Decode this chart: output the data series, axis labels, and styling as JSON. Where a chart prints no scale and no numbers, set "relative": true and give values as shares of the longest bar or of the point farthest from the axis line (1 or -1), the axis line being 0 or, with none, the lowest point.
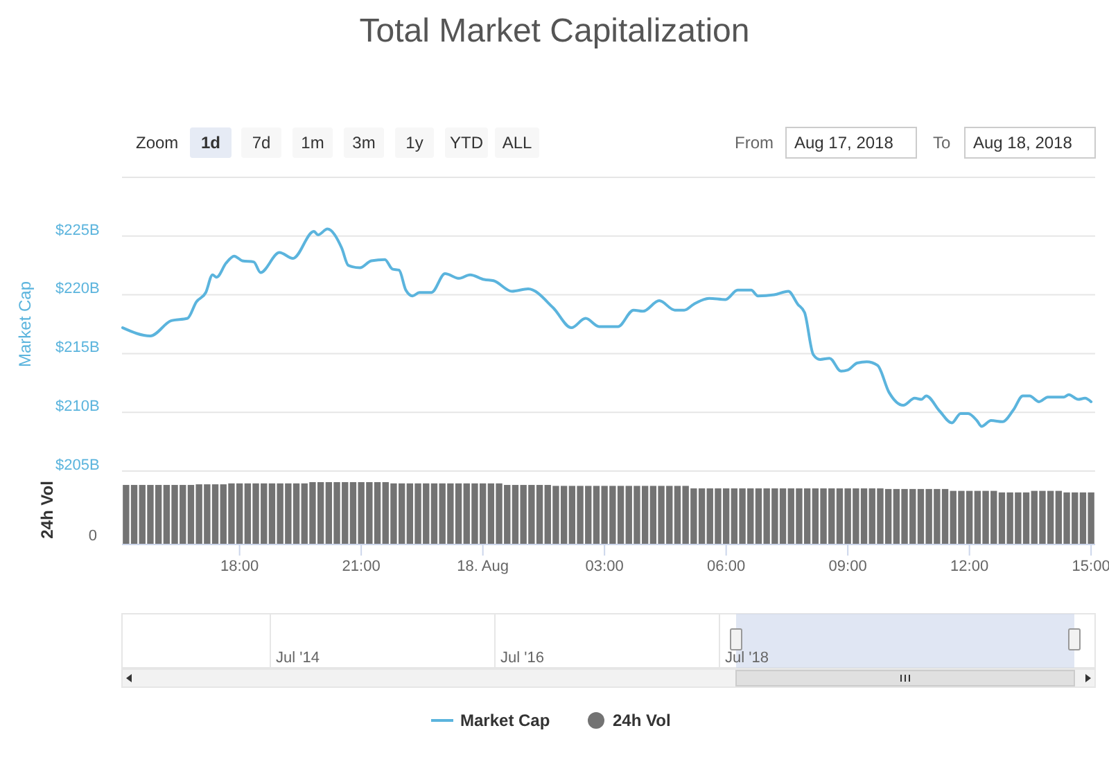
{
  "chart_data": [
    {
      "type": "line",
      "title": "Total Market Capitalization",
      "ylabel": "Market Cap",
      "xlim": [
        "2018-08-17T15:06",
        "2018-08-18T15:06"
      ],
      "ylim": [
        205,
        230
      ],
      "yticks": [
        {
          "value": 205,
          "label": "$205B"
        },
        {
          "value": 210,
          "label": "$210B"
        },
        {
          "value": 215,
          "label": "$215B"
        },
        {
          "value": 220,
          "label": "$220B"
        },
        {
          "value": 225,
          "label": "$225B"
        }
      ],
      "tick_labels": "y",
      "grid": "y",
      "legend": "bottom",
      "annotations": [
        "Zoom",
        "1d",
        "7d",
        "1m",
        "3m",
        "1y",
        "YTD",
        "ALL",
        "From",
        "Aug 17, 2018",
        "To",
        "Aug 18, 2018",
        "Jul '14",
        "Jul '16",
        "Jul '18"
      ],
      "x": [
        "2018-08-17T15:07",
        "2018-08-17T15:48",
        "2018-08-17T16:19",
        "2018-08-17T16:43",
        "2018-08-17T16:56",
        "2018-08-17T17:10",
        "2018-08-17T17:20",
        "2018-08-17T17:26",
        "2018-08-17T17:40",
        "2018-08-17T17:52",
        "2018-08-17T18:04",
        "2018-08-17T18:21",
        "2018-08-17T18:31",
        "2018-08-17T18:59",
        "2018-08-17T19:19",
        "2018-08-17T19:50",
        "2018-08-17T19:56",
        "2018-08-17T20:10",
        "2018-08-17T20:31",
        "2018-08-17T20:41",
        "2018-08-17T20:58",
        "2018-08-17T21:15",
        "2018-08-17T21:35",
        "2018-08-17T21:46",
        "2018-08-17T21:56",
        "2018-08-17T22:06",
        "2018-08-17T22:16",
        "2018-08-17T22:26",
        "2018-08-17T22:44",
        "2018-08-17T23:04",
        "2018-08-17T23:25",
        "2018-08-17T23:41",
        "2018-08-18T00:02",
        "2018-08-18T00:16",
        "2018-08-18T00:43",
        "2018-08-18T01:07",
        "2018-08-18T01:44",
        "2018-08-18T02:11",
        "2018-08-18T02:32",
        "2018-08-18T02:52",
        "2018-08-18T03:20",
        "2018-08-18T03:43",
        "2018-08-18T03:57",
        "2018-08-18T04:21",
        "2018-08-18T04:44",
        "2018-08-18T04:58",
        "2018-08-18T05:12",
        "2018-08-18T05:35",
        "2018-08-18T05:59",
        "2018-08-18T06:17",
        "2018-08-18T06:37",
        "2018-08-18T06:47",
        "2018-08-18T07:11",
        "2018-08-18T07:32",
        "2018-08-18T07:46",
        "2018-08-18T07:56",
        "2018-08-18T08:09",
        "2018-08-18T08:19",
        "2018-08-18T08:33",
        "2018-08-18T08:50",
        "2018-08-18T09:00",
        "2018-08-18T09:14",
        "2018-08-18T09:28",
        "2018-08-18T09:44",
        "2018-08-18T10:01",
        "2018-08-18T10:22",
        "2018-08-18T10:39",
        "2018-08-18T10:49",
        "2018-08-18T10:56",
        "2018-08-18T11:16",
        "2018-08-18T11:34",
        "2018-08-18T11:47",
        "2018-08-18T11:58",
        "2018-08-18T12:11",
        "2018-08-18T12:18",
        "2018-08-18T12:32",
        "2018-08-18T12:49",
        "2018-08-18T13:05",
        "2018-08-18T13:19",
        "2018-08-18T13:29",
        "2018-08-18T13:43",
        "2018-08-18T13:56",
        "2018-08-18T14:20",
        "2018-08-18T14:27",
        "2018-08-18T14:41",
        "2018-08-18T14:51",
        "2018-08-18T15:00"
      ],
      "series": [
        {
          "name": "Market Cap",
          "color": "#5bb4dd",
          "values": [
            217.2,
            216.5,
            217.8,
            218.0,
            219.4,
            220.2,
            221.7,
            221.5,
            222.7,
            223.3,
            222.9,
            222.8,
            221.9,
            223.6,
            223.1,
            225.4,
            225.1,
            225.6,
            224.0,
            222.5,
            222.3,
            222.9,
            223.0,
            222.2,
            222.1,
            220.4,
            219.9,
            220.2,
            220.2,
            221.8,
            221.4,
            221.7,
            221.3,
            221.2,
            220.3,
            220.5,
            218.9,
            217.2,
            218.0,
            217.3,
            217.3,
            218.7,
            218.6,
            219.5,
            218.7,
            218.7,
            219.2,
            219.7,
            219.6,
            220.4,
            220.4,
            219.9,
            220.0,
            220.3,
            219.2,
            218.5,
            214.9,
            214.5,
            214.6,
            213.5,
            213.6,
            214.2,
            214.3,
            214.0,
            211.7,
            210.6,
            211.2,
            211.1,
            211.4,
            210.1,
            209.1,
            209.9,
            209.9,
            209.3,
            208.8,
            209.3,
            209.2,
            210.2,
            211.4,
            211.4,
            210.9,
            211.3,
            211.3,
            211.5,
            211.1,
            211.2,
            210.9
          ]
        }
      ]
    },
    {
      "type": "bar",
      "ylabel": "24h Vol",
      "relative": true,
      "legend": "bottom",
      "tick_labels": "x",
      "annotations": [
        "0"
      ],
      "xlim": [
        "2018-08-17T15:06",
        "2018-08-18T15:06"
      ],
      "xticks": [
        {
          "value": "2018-08-17T18:00",
          "label": "18:00"
        },
        {
          "value": "2018-08-17T21:00",
          "label": "21:00"
        },
        {
          "value": "2018-08-18",
          "label": "18. Aug"
        },
        {
          "value": "2018-08-18T03:00",
          "label": "03:00"
        },
        {
          "value": "2018-08-18T06:00",
          "label": "06:00"
        },
        {
          "value": "2018-08-18T09:00",
          "label": "09:00"
        },
        {
          "value": "2018-08-18T12:00",
          "label": "12:00"
        },
        {
          "value": "2018-08-18T15:00",
          "label": "15:00"
        }
      ],
      "x": [
        "2018-08-17T15:12",
        "2018-08-17T15:24",
        "2018-08-17T15:36",
        "2018-08-17T15:48",
        "2018-08-17T16:00",
        "2018-08-17T16:12",
        "2018-08-17T16:24",
        "2018-08-17T16:36",
        "2018-08-17T16:48",
        "2018-08-17T17:00",
        "2018-08-17T17:12",
        "2018-08-17T17:24",
        "2018-08-17T17:36",
        "2018-08-17T17:48",
        "2018-08-17T18:00",
        "2018-08-17T18:12",
        "2018-08-17T18:24",
        "2018-08-17T18:36",
        "2018-08-17T18:48",
        "2018-08-17T19:00",
        "2018-08-17T19:12",
        "2018-08-17T19:24",
        "2018-08-17T19:36",
        "2018-08-17T19:48",
        "2018-08-17T20:00",
        "2018-08-17T20:12",
        "2018-08-17T20:24",
        "2018-08-17T20:36",
        "2018-08-17T20:48",
        "2018-08-17T21:00",
        "2018-08-17T21:12",
        "2018-08-17T21:24",
        "2018-08-17T21:36",
        "2018-08-17T21:48",
        "2018-08-17T22:00",
        "2018-08-17T22:12",
        "2018-08-17T22:24",
        "2018-08-17T22:36",
        "2018-08-17T22:48",
        "2018-08-17T23:00",
        "2018-08-17T23:12",
        "2018-08-17T23:24",
        "2018-08-17T23:36",
        "2018-08-17T23:48",
        "2018-08-18T00:00",
        "2018-08-18T00:12",
        "2018-08-18T00:24",
        "2018-08-18T00:36",
        "2018-08-18T00:48",
        "2018-08-18T01:00",
        "2018-08-18T01:12",
        "2018-08-18T01:24",
        "2018-08-18T01:36",
        "2018-08-18T01:48",
        "2018-08-18T02:00",
        "2018-08-18T02:12",
        "2018-08-18T02:24",
        "2018-08-18T02:36",
        "2018-08-18T02:48",
        "2018-08-18T03:00",
        "2018-08-18T03:12",
        "2018-08-18T03:24",
        "2018-08-18T03:36",
        "2018-08-18T03:48",
        "2018-08-18T04:00",
        "2018-08-18T04:12",
        "2018-08-18T04:24",
        "2018-08-18T04:36",
        "2018-08-18T04:48",
        "2018-08-18T05:00",
        "2018-08-18T05:12",
        "2018-08-18T05:24",
        "2018-08-18T05:36",
        "2018-08-18T05:48",
        "2018-08-18T06:00",
        "2018-08-18T06:12",
        "2018-08-18T06:24",
        "2018-08-18T06:36",
        "2018-08-18T06:48",
        "2018-08-18T07:00",
        "2018-08-18T07:12",
        "2018-08-18T07:24",
        "2018-08-18T07:36",
        "2018-08-18T07:48",
        "2018-08-18T08:00",
        "2018-08-18T08:12",
        "2018-08-18T08:24",
        "2018-08-18T08:36",
        "2018-08-18T08:48",
        "2018-08-18T09:00",
        "2018-08-18T09:12",
        "2018-08-18T09:24",
        "2018-08-18T09:36",
        "2018-08-18T09:48",
        "2018-08-18T10:00",
        "2018-08-18T10:12",
        "2018-08-18T10:24",
        "2018-08-18T10:36",
        "2018-08-18T10:48",
        "2018-08-18T11:00",
        "2018-08-18T11:12",
        "2018-08-18T11:24",
        "2018-08-18T11:36",
        "2018-08-18T11:48",
        "2018-08-18T12:00",
        "2018-08-18T12:12",
        "2018-08-18T12:24",
        "2018-08-18T12:36",
        "2018-08-18T12:48",
        "2018-08-18T13:00",
        "2018-08-18T13:12",
        "2018-08-18T13:24",
        "2018-08-18T13:36",
        "2018-08-18T13:48",
        "2018-08-18T14:00",
        "2018-08-18T14:12",
        "2018-08-18T14:24",
        "2018-08-18T14:36",
        "2018-08-18T14:48",
        "2018-08-18T15:00"
      ],
      "series": [
        {
          "name": "24h Vol",
          "color": "#737373",
          "values": [
            0.955,
            0.955,
            0.955,
            0.955,
            0.955,
            0.955,
            0.955,
            0.955,
            0.955,
            0.965,
            0.965,
            0.965,
            0.965,
            0.98,
            0.98,
            0.98,
            0.98,
            0.98,
            0.98,
            0.98,
            0.98,
            0.98,
            0.98,
            1,
            1,
            1,
            1,
            1,
            1,
            1,
            1,
            1,
            1,
            0.98,
            0.98,
            0.98,
            0.98,
            0.98,
            0.98,
            0.98,
            0.98,
            0.98,
            0.98,
            0.98,
            0.98,
            0.98,
            0.98,
            0.955,
            0.955,
            0.955,
            0.955,
            0.955,
            0.955,
            0.94,
            0.94,
            0.94,
            0.94,
            0.94,
            0.94,
            0.94,
            0.94,
            0.94,
            0.94,
            0.94,
            0.94,
            0.94,
            0.94,
            0.94,
            0.94,
            0.94,
            0.9,
            0.9,
            0.9,
            0.9,
            0.9,
            0.9,
            0.9,
            0.9,
            0.9,
            0.9,
            0.9,
            0.9,
            0.9,
            0.9,
            0.9,
            0.9,
            0.9,
            0.9,
            0.9,
            0.9,
            0.9,
            0.9,
            0.9,
            0.9,
            0.89,
            0.89,
            0.89,
            0.89,
            0.89,
            0.89,
            0.89,
            0.89,
            0.86,
            0.86,
            0.86,
            0.86,
            0.86,
            0.86,
            0.835,
            0.835,
            0.835,
            0.835,
            0.86,
            0.86,
            0.86,
            0.86,
            0.835,
            0.835,
            0.835,
            0.835
          ]
        }
      ]
    }
  ]
}
